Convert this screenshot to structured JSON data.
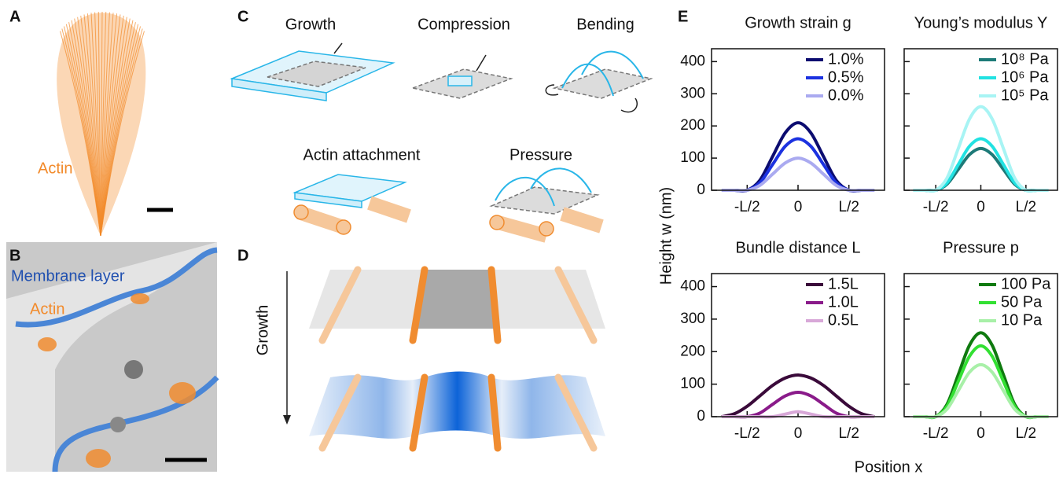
{
  "panels": {
    "a": {
      "label": "A",
      "text": "Actin"
    },
    "b": {
      "label": "B",
      "membrane": "Membrane layer",
      "actin": "Actin"
    },
    "c": {
      "label": "C",
      "items": [
        "Growth",
        "Compression",
        "Bending",
        "Actin attachment",
        "Pressure"
      ]
    },
    "d": {
      "label": "D",
      "arrow": "Growth"
    },
    "e": {
      "label": "E",
      "ylabel": "Height w (nm)",
      "xlabel": "Position x"
    }
  },
  "chart_data": [
    {
      "type": "line",
      "title": "Growth strain g",
      "show_ytick_labels": true,
      "x": [
        -0.75,
        -0.625,
        -0.5,
        -0.375,
        -0.25,
        -0.125,
        0,
        0.125,
        0.25,
        0.375,
        0.5,
        0.625,
        0.75
      ],
      "xlim": [
        -0.85,
        0.85
      ],
      "xticks": [
        {
          "value": -0.5,
          "label": "-L/2"
        },
        0,
        {
          "value": 0.5,
          "label": "L/2"
        }
      ],
      "ylim": [
        0,
        440
      ],
      "yticks": [
        0,
        100,
        200,
        300,
        400
      ],
      "series": [
        {
          "name": "1.0%",
          "color": "#0c0c70",
          "values": [
            0,
            0,
            0,
            31,
            105,
            179,
            210,
            179,
            105,
            31,
            0,
            0,
            0
          ]
        },
        {
          "name": "0.5%",
          "color": "#1c32e0",
          "values": [
            0,
            0,
            0,
            23,
            80,
            137,
            160,
            137,
            80,
            23,
            0,
            0,
            0
          ]
        },
        {
          "name": "0.0%",
          "color": "#aaaaf0",
          "values": [
            0,
            0,
            0,
            15,
            50,
            85,
            100,
            85,
            50,
            15,
            0,
            0,
            0
          ]
        }
      ]
    },
    {
      "type": "line",
      "title": "Young’s modulus Y",
      "show_ytick_labels": false,
      "x": [
        -0.75,
        -0.625,
        -0.5,
        -0.375,
        -0.25,
        -0.125,
        0,
        0.125,
        0.25,
        0.375,
        0.5,
        0.625,
        0.75
      ],
      "xlim": [
        -0.85,
        0.85
      ],
      "xticks": [
        {
          "value": -0.5,
          "label": "-L/2"
        },
        0,
        {
          "value": 0.5,
          "label": "L/2"
        }
      ],
      "ylim": [
        0,
        440
      ],
      "yticks": [
        0,
        100,
        200,
        300,
        400
      ],
      "series": [
        {
          "name": "10⁸ Pa",
          "color": "#1d7a78",
          "values": [
            0,
            0,
            0,
            19,
            65,
            111,
            130,
            111,
            65,
            19,
            0,
            0,
            0
          ]
        },
        {
          "name": "10⁶ Pa",
          "color": "#22e2e2",
          "values": [
            0,
            0,
            0,
            23,
            80,
            137,
            160,
            137,
            80,
            23,
            0,
            0,
            0
          ]
        },
        {
          "name": "10⁵ Pa",
          "color": "#a8f4f4",
          "values": [
            0,
            0,
            0,
            38,
            130,
            222,
            260,
            222,
            130,
            38,
            0,
            0,
            0
          ]
        }
      ]
    },
    {
      "type": "line",
      "title": "Bundle distance L",
      "show_ytick_labels": true,
      "x": [
        -0.75,
        -0.625,
        -0.5,
        -0.375,
        -0.25,
        -0.125,
        0,
        0.125,
        0.25,
        0.375,
        0.5,
        0.625,
        0.75
      ],
      "xlim": [
        -0.85,
        0.85
      ],
      "xticks": [
        {
          "value": -0.5,
          "label": "-L/2"
        },
        0,
        {
          "value": 0.5,
          "label": "L/2"
        }
      ],
      "ylim": [
        0,
        440
      ],
      "yticks": [
        0,
        100,
        200,
        300,
        400
      ],
      "series": [
        {
          "name": "1.5L",
          "color": "#3a0a3a",
          "values": [
            0,
            9,
            32,
            64,
            96,
            119,
            128,
            119,
            96,
            64,
            32,
            9,
            0
          ]
        },
        {
          "name": "1.0L",
          "color": "#8a1b8a",
          "values": [
            0,
            0,
            0,
            11,
            38,
            64,
            75,
            64,
            38,
            11,
            0,
            0,
            0
          ]
        },
        {
          "name": "0.5L",
          "color": "#d8a8d8",
          "values": [
            0,
            0,
            0,
            0,
            0,
            8,
            15,
            8,
            0,
            0,
            0,
            0,
            0
          ]
        }
      ]
    },
    {
      "type": "line",
      "title": "Pressure p",
      "show_ytick_labels": false,
      "x": [
        -0.75,
        -0.625,
        -0.5,
        -0.375,
        -0.25,
        -0.125,
        0,
        0.125,
        0.25,
        0.375,
        0.5,
        0.625,
        0.75
      ],
      "xlim": [
        -0.85,
        0.85
      ],
      "xticks": [
        {
          "value": -0.5,
          "label": "-L/2"
        },
        0,
        {
          "value": 0.5,
          "label": "L/2"
        }
      ],
      "ylim": [
        0,
        440
      ],
      "yticks": [
        0,
        100,
        200,
        300,
        400
      ],
      "series": [
        {
          "name": "100 Pa",
          "color": "#0f7a0f",
          "values": [
            0,
            0,
            0,
            38,
            129,
            220,
            258,
            220,
            129,
            38,
            0,
            0,
            0
          ]
        },
        {
          "name": "50 Pa",
          "color": "#33e033",
          "values": [
            0,
            0,
            0,
            32,
            109,
            186,
            218,
            186,
            109,
            32,
            0,
            0,
            0
          ]
        },
        {
          "name": "10 Pa",
          "color": "#a8f0a8",
          "values": [
            0,
            0,
            0,
            23,
            80,
            137,
            160,
            137,
            80,
            23,
            0,
            0,
            0
          ]
        }
      ]
    }
  ]
}
